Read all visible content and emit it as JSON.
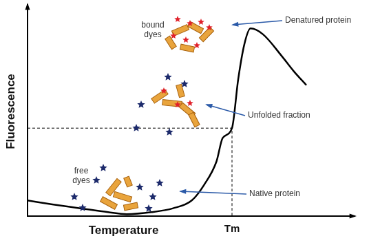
{
  "chart_data": {
    "type": "line",
    "x_label": "Temperature",
    "y_label": "Fluorescence",
    "x": [
      0,
      8,
      17,
      26,
      32,
      40,
      47,
      53,
      57,
      61,
      63,
      66,
      68,
      70,
      72,
      76,
      82,
      86,
      90
    ],
    "values": [
      8,
      6,
      4,
      2,
      1,
      2,
      4,
      8,
      16,
      28,
      40,
      45,
      70,
      88,
      96,
      93,
      82,
      74,
      67
    ],
    "color": "#000000",
    "xlim": [
      0,
      100
    ],
    "ylim": [
      0,
      100
    ],
    "xticks": [
      {
        "value": 66,
        "label": "Tm"
      }
    ],
    "yticks": [],
    "tick_labels": "x",
    "grid": false,
    "tm_point": {
      "x": 66,
      "y": 45
    },
    "annotations": [
      "bound dyes",
      "Denatured protein",
      "Unfolded fraction",
      "free dyes",
      "Native protein"
    ]
  }
}
